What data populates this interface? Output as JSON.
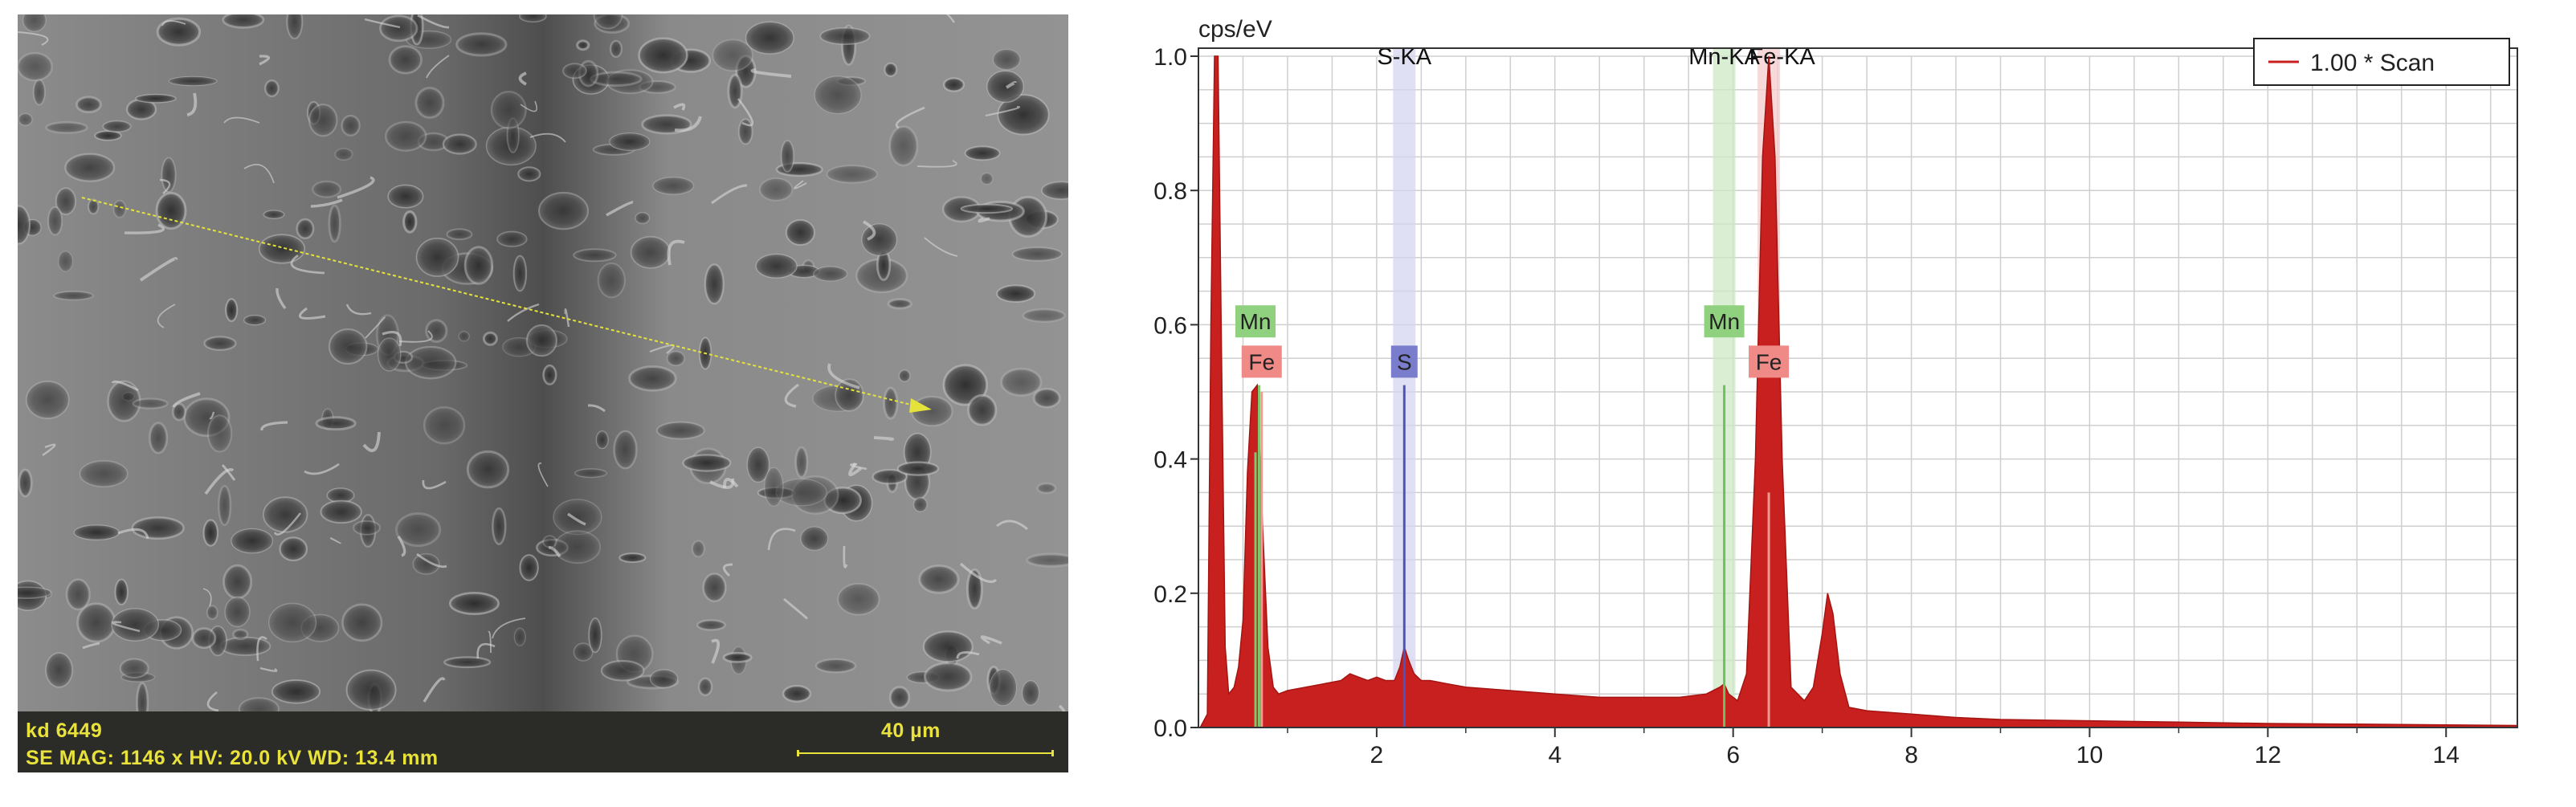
{
  "sem": {
    "sample_id": "kd 6449",
    "parameters": "SE  MAG: 1146 x  HV: 20.0 kV  WD: 13.4 mm",
    "scale_bar_label": "40 µm",
    "colors": {
      "overlay_text": "#e8e23a",
      "linescan": "#e6e23c"
    }
  },
  "chart_data": {
    "type": "area",
    "ylabel": "cps/eV",
    "xlim": [
      0,
      14.8
    ],
    "ylim": [
      0,
      1.0
    ],
    "x_ticks": [
      "2",
      "4",
      "6",
      "8",
      "10",
      "12",
      "14"
    ],
    "y_ticks": [
      "0.0",
      "0.2",
      "0.4",
      "0.6",
      "0.8",
      "1.0"
    ],
    "legend": {
      "label": "1.00 * Scan",
      "placement": "top-right"
    },
    "grid": true,
    "peak_titles": [
      "S-KA",
      "Mn-KA",
      "Fe-KA"
    ],
    "peak_lines": [
      {
        "label": "S",
        "energy_keV": 2.31,
        "color": "#5f62b4"
      },
      {
        "label": "Mn",
        "energy_keV": 5.9,
        "color": "#6cc25e"
      },
      {
        "label": "Fe",
        "energy_keV": 6.4,
        "color": "#ee8787"
      }
    ],
    "element_markers": [
      {
        "label": "Mn",
        "energy_keV": 0.64,
        "level": 0.605,
        "color": "#8fd17e"
      },
      {
        "label": "Fe",
        "energy_keV": 0.71,
        "level": 0.545,
        "color": "#f08a86"
      },
      {
        "label": "S",
        "energy_keV": 2.31,
        "level": 0.545,
        "color": "#7a7dcc"
      },
      {
        "label": "Mn",
        "energy_keV": 5.9,
        "level": 0.605,
        "color": "#8fd17e"
      },
      {
        "label": "Fe",
        "energy_keV": 6.4,
        "level": 0.545,
        "color": "#f08a86"
      }
    ],
    "series": [
      {
        "name": "1.00 * Scan",
        "color": "#c8201e",
        "x": [
          0.02,
          0.1,
          0.14,
          0.18,
          0.22,
          0.26,
          0.3,
          0.34,
          0.4,
          0.45,
          0.5,
          0.55,
          0.6,
          0.66,
          0.72,
          0.78,
          0.84,
          0.9,
          1.0,
          1.2,
          1.4,
          1.6,
          1.7,
          1.8,
          1.9,
          2.0,
          2.1,
          2.2,
          2.26,
          2.31,
          2.36,
          2.42,
          2.5,
          2.6,
          2.8,
          3.0,
          3.5,
          4.0,
          4.5,
          5.0,
          5.4,
          5.7,
          5.85,
          5.9,
          5.95,
          6.05,
          6.15,
          6.25,
          6.33,
          6.4,
          6.47,
          6.55,
          6.65,
          6.8,
          6.9,
          7.0,
          7.06,
          7.12,
          7.2,
          7.3,
          7.5,
          8.0,
          8.5,
          9.0,
          10.0,
          11.0,
          12.0,
          13.0,
          14.0,
          14.8
        ],
        "y": [
          0.0,
          0.02,
          0.6,
          1.0,
          1.0,
          0.55,
          0.12,
          0.05,
          0.06,
          0.09,
          0.16,
          0.38,
          0.5,
          0.51,
          0.3,
          0.12,
          0.06,
          0.05,
          0.055,
          0.06,
          0.065,
          0.07,
          0.08,
          0.075,
          0.07,
          0.075,
          0.07,
          0.07,
          0.09,
          0.12,
          0.1,
          0.08,
          0.07,
          0.07,
          0.065,
          0.06,
          0.055,
          0.05,
          0.045,
          0.045,
          0.045,
          0.05,
          0.06,
          0.065,
          0.05,
          0.04,
          0.08,
          0.4,
          0.85,
          1.0,
          0.85,
          0.4,
          0.06,
          0.04,
          0.06,
          0.14,
          0.2,
          0.17,
          0.08,
          0.03,
          0.025,
          0.02,
          0.015,
          0.012,
          0.01,
          0.008,
          0.006,
          0.005,
          0.004,
          0.003
        ]
      }
    ]
  }
}
